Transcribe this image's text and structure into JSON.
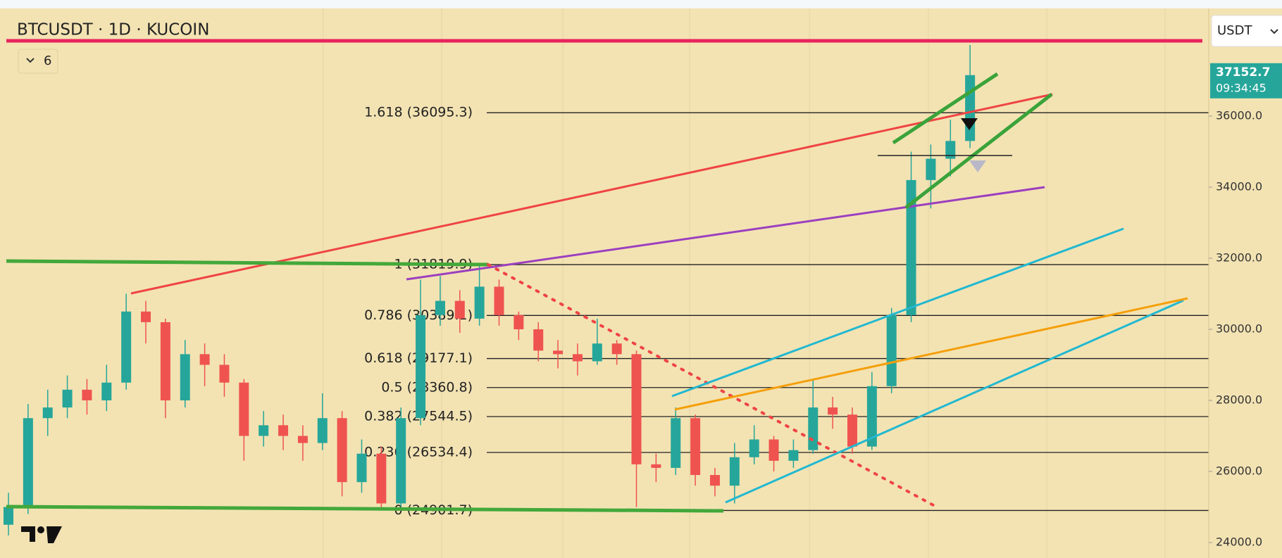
{
  "chart_data": {
    "type": "candlestick",
    "title": "BTCUSDT · 1D · KUCOIN",
    "indicator_count": "6",
    "currency": "USDT",
    "countdown": "09:34:45",
    "up_color": "#26a69a",
    "down_color": "#ef5350",
    "ylim": [
      23564,
      39267
    ],
    "yticks": [
      {
        "value": 24000,
        "label": "24000.0"
      },
      {
        "value": 26000,
        "label": "26000.0"
      },
      {
        "value": 28000,
        "label": "28000.0"
      },
      {
        "value": 30000,
        "label": "30000.0"
      },
      {
        "value": 32000,
        "label": "32000.0"
      },
      {
        "value": 34000,
        "label": "34000.0"
      },
      {
        "value": 36000,
        "label": "36000.0"
      }
    ],
    "levels": [
      {
        "label": "1.618 (36095.3)",
        "value": 36095.3
      },
      {
        "label": "1 (31819.9)",
        "value": 31819.9
      },
      {
        "label": "0.786 (30389.1)",
        "value": 30389.1
      },
      {
        "label": "0.618 (29177.1)",
        "value": 29177.1
      },
      {
        "label": "0.5 (28360.8)",
        "value": 28360.8
      },
      {
        "label": "0.382 (27544.5)",
        "value": 27544.5
      },
      {
        "label": "0.236 (26534.4)",
        "value": 26534.4
      },
      {
        "label": "0 (24901.7)",
        "value": 24901.7
      }
    ],
    "open": [
      24500,
      25000,
      27500,
      27800,
      28300,
      28000,
      28500,
      30500,
      30200,
      28000,
      29300,
      29000,
      28500,
      27000,
      27300,
      27000,
      26800,
      27500,
      25700,
      26500,
      25100,
      27500,
      30400,
      30800,
      30300,
      31200,
      30400,
      30000,
      29400,
      29300,
      29100,
      29600,
      29300,
      26200,
      26100,
      27500,
      25900,
      25600,
      26400,
      26900,
      26300,
      26600,
      27800,
      27600,
      26700,
      28400,
      30400,
      34200,
      34800,
      35300
    ],
    "high": [
      25400,
      27900,
      28300,
      28700,
      28600,
      29000,
      31000,
      30800,
      30300,
      29700,
      29600,
      29300,
      28600,
      27700,
      27600,
      27300,
      28200,
      27700,
      26900,
      26700,
      27800,
      31400,
      31500,
      31100,
      31800,
      31400,
      30500,
      30200,
      29700,
      29600,
      30300,
      29700,
      29400,
      26500,
      27800,
      27600,
      26100,
      26800,
      27300,
      27000,
      26900,
      28600,
      28100,
      27800,
      28800,
      30600,
      35000,
      35200,
      35900,
      38000
    ],
    "low": [
      24200,
      24800,
      27000,
      27500,
      27600,
      27700,
      28300,
      29600,
      27500,
      27800,
      28400,
      28100,
      26300,
      26700,
      26600,
      26300,
      26600,
      25300,
      25400,
      24900,
      25000,
      27300,
      30100,
      29900,
      30100,
      30100,
      29700,
      29100,
      28900,
      28700,
      29000,
      29000,
      25000,
      25700,
      25900,
      25600,
      25300,
      25100,
      26200,
      26000,
      26100,
      26500,
      27200,
      26500,
      26600,
      28200,
      30200,
      33400,
      34300,
      35100
    ],
    "close": [
      25000,
      27500,
      27800,
      28300,
      28000,
      28500,
      30500,
      30200,
      28000,
      29300,
      29000,
      28500,
      27000,
      27300,
      27000,
      26800,
      27500,
      25700,
      26500,
      25100,
      27500,
      30400,
      30800,
      30300,
      31200,
      30400,
      30000,
      29400,
      29300,
      29100,
      29600,
      29300,
      26200,
      26100,
      27500,
      25900,
      25600,
      26400,
      26900,
      26300,
      26600,
      27800,
      27600,
      26700,
      28400,
      30400,
      34200,
      34800,
      35300,
      37152.7
    ]
  }
}
